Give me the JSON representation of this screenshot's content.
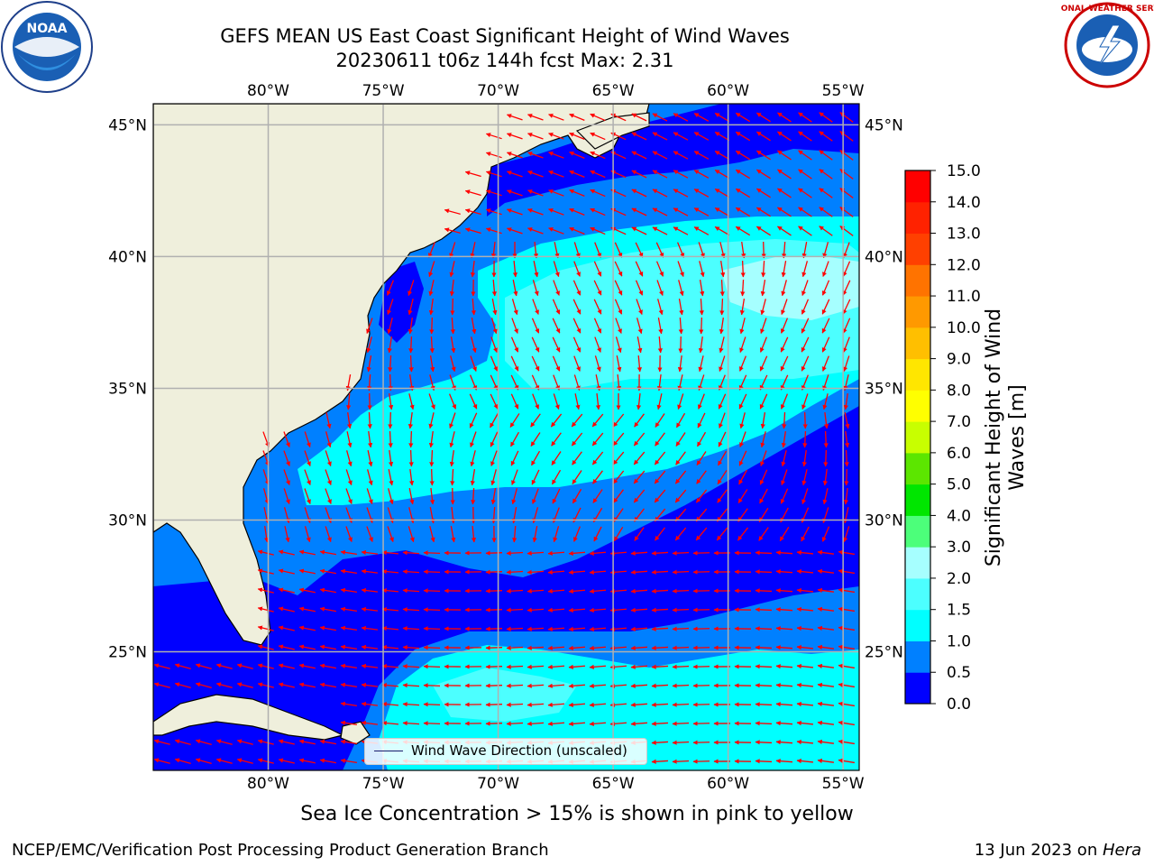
{
  "title": {
    "line1": "GEFS MEAN US East Coast Significant Height of Wind Waves",
    "line2": "20230611 t06z 144h fcst   Max: 2.31"
  },
  "map": {
    "lon_labels": [
      "80°W",
      "75°W",
      "70°W",
      "65°W",
      "60°W",
      "55°W"
    ],
    "lat_labels": [
      "45°N",
      "40°N",
      "35°N",
      "30°N",
      "25°N"
    ],
    "lon_values": [
      -80,
      -75,
      -70,
      -65,
      -60,
      -55
    ],
    "lat_values": [
      45,
      40,
      35,
      30,
      25
    ],
    "extent": {
      "lon": [
        -85,
        -54.3
      ],
      "lat": [
        20.5,
        45.8
      ]
    },
    "land_color": "#efefdc",
    "arrow_color": "#ff0000",
    "grid_color": "#b0b0b0"
  },
  "legend": {
    "label": "Wind Wave Direction (unscaled)"
  },
  "colorbar": {
    "label_line1": "Significant Height of Wind",
    "label_line2": "Waves [m]",
    "ticks": [
      "0.0",
      "0.5",
      "1.0",
      "1.5",
      "2.0",
      "3.0",
      "4.0",
      "5.0",
      "6.0",
      "7.0",
      "8.0",
      "9.0",
      "10.0",
      "11.0",
      "12.0",
      "13.0",
      "14.0",
      "15.0"
    ],
    "colors": [
      "#0000ff",
      "#0080ff",
      "#00ffff",
      "#4cffff",
      "#a6ffff",
      "#4cff7a",
      "#00e600",
      "#5ce600",
      "#c8ff00",
      "#ffff00",
      "#ffe600",
      "#ffbf00",
      "#ff9900",
      "#ff7300",
      "#ff4000",
      "#ff2200",
      "#ff0000"
    ]
  },
  "notes": {
    "ice": "Sea Ice Concentration > 15% is shown in pink to yellow",
    "footer_left": "NCEP/EMC/Verification Post Processing Product Generation Branch",
    "footer_right_date": "13 Jun 2023 on ",
    "footer_right_host": "Hera"
  },
  "logos": {
    "noaa_text": "NOAA",
    "nws_text": "NATIONAL WEATHER SERVICE"
  }
}
